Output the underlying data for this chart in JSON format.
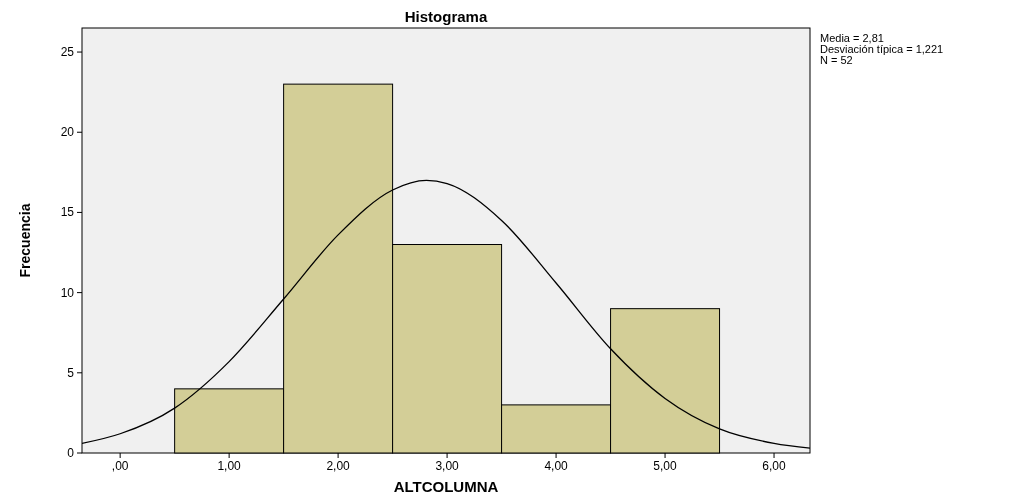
{
  "chart_data": {
    "type": "histogram",
    "title": "Histograma",
    "xlabel": "ALTCOLUMNA",
    "ylabel": "Frecuencia",
    "annotations": [
      "Media = 2,81",
      "Desviación típica = 1,221",
      "N = 52"
    ],
    "bins": [
      0.5,
      1.5,
      2.5,
      3.5,
      4.5,
      5.5
    ],
    "values": [
      4,
      23,
      13,
      3,
      9
    ],
    "color": "#d3ce97",
    "series": [
      {
        "type": "line",
        "color": "#000000",
        "x": [
          -0.35,
          0,
          0.5,
          1,
          1.5,
          2,
          2.5,
          2.81,
          3,
          3.5,
          4,
          4.5,
          5,
          5.5,
          6,
          6.33
        ],
        "values": [
          0.6,
          1.2,
          2.8,
          5.7,
          9.6,
          13.6,
          16.4,
          17,
          16.8,
          14.5,
          10.6,
          6.5,
          3.4,
          1.5,
          0.6,
          0.3
        ]
      }
    ],
    "xlim": [
      -0.35,
      6.33
    ],
    "ylim": [
      0,
      26.5
    ],
    "xticks": [
      {
        "value": 0,
        "label": ",00"
      },
      {
        "value": 1,
        "label": "1,00"
      },
      {
        "value": 2,
        "label": "2,00"
      },
      {
        "value": 3,
        "label": "3,00"
      },
      {
        "value": 4,
        "label": "4,00"
      },
      {
        "value": 5,
        "label": "5,00"
      },
      {
        "value": 6,
        "label": "6,00"
      }
    ],
    "yticks": [
      0,
      5,
      10,
      15,
      20,
      25
    ]
  }
}
